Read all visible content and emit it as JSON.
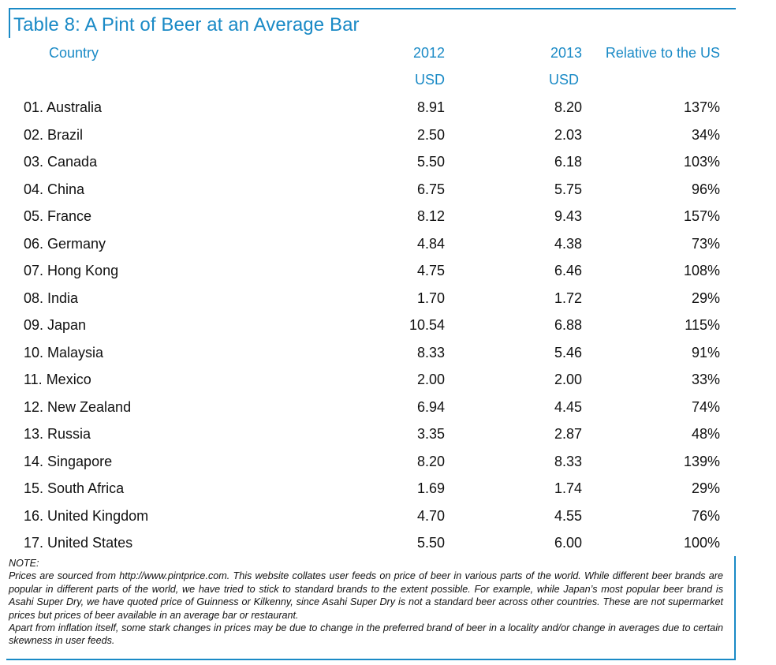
{
  "title": "Table 8: A Pint of Beer at an Average Bar",
  "columns": {
    "country": "Country",
    "y2012": "2012",
    "y2012_unit": "USD",
    "y2013": "2013",
    "y2013_unit": "USD",
    "relative": "Relative to the US"
  },
  "rows": [
    {
      "country": "01. Australia",
      "y2012": "8.91",
      "y2013": "8.20",
      "relative": "137%"
    },
    {
      "country": "02. Brazil",
      "y2012": "2.50",
      "y2013": "2.03",
      "relative": "34%"
    },
    {
      "country": "03. Canada",
      "y2012": "5.50",
      "y2013": "6.18",
      "relative": "103%"
    },
    {
      "country": "04. China",
      "y2012": "6.75",
      "y2013": "5.75",
      "relative": "96%"
    },
    {
      "country": "05. France",
      "y2012": "8.12",
      "y2013": "9.43",
      "relative": "157%"
    },
    {
      "country": "06. Germany",
      "y2012": "4.84",
      "y2013": "4.38",
      "relative": "73%"
    },
    {
      "country": "07. Hong Kong",
      "y2012": "4.75",
      "y2013": "6.46",
      "relative": "108%"
    },
    {
      "country": "08. India",
      "y2012": "1.70",
      "y2013": "1.72",
      "relative": "29%"
    },
    {
      "country": "09. Japan",
      "y2012": "10.54",
      "y2013": "6.88",
      "relative": "115%"
    },
    {
      "country": "10. Malaysia",
      "y2012": "8.33",
      "y2013": "5.46",
      "relative": "91%"
    },
    {
      "country": "11. Mexico",
      "y2012": "2.00",
      "y2013": "2.00",
      "relative": "33%"
    },
    {
      "country": "12. New Zealand",
      "y2012": "6.94",
      "y2013": "4.45",
      "relative": "74%"
    },
    {
      "country": "13. Russia",
      "y2012": "3.35",
      "y2013": "2.87",
      "relative": "48%"
    },
    {
      "country": "14. Singapore",
      "y2012": "8.20",
      "y2013": "8.33",
      "relative": "139%"
    },
    {
      "country": "15. South Africa",
      "y2012": "1.69",
      "y2013": "1.74",
      "relative": "29%"
    },
    {
      "country": "16. United Kingdom",
      "y2012": "4.70",
      "y2013": "4.55",
      "relative": "76%"
    },
    {
      "country": "17. United States",
      "y2012": "5.50",
      "y2013": "6.00",
      "relative": "100%"
    }
  ],
  "note": {
    "label": "NOTE:",
    "paragraph1": "Prices are sourced from http://www.pintprice.com. This website collates user feeds on price of beer in various parts of the world. While different beer brands are popular in different parts of the world, we have tried to stick to standard brands to the extent possible. For example, while Japan’s most popular beer brand is Asahi Super Dry, we have quoted price of Guinness or Kilkenny, since Asahi Super Dry is not a standard beer across other countries. These are not supermarket prices but prices of beer available in an average bar or restaurant.",
    "paragraph2": "Apart from inflation itself, some stark changes in prices may be due to change in the preferred brand of beer in a locality and/or change in averages due to certain skewness in user feeds."
  },
  "colors": {
    "accent": "#1a8ac6",
    "text": "#111111"
  }
}
